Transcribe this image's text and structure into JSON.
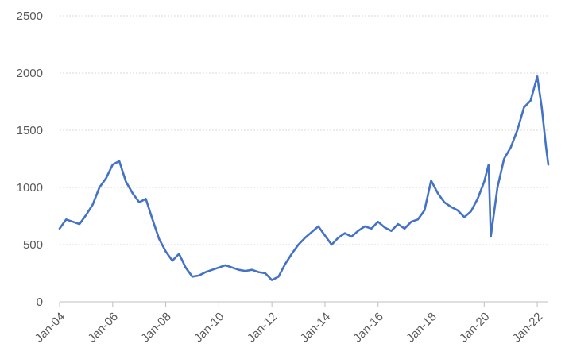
{
  "chart_data": {
    "type": "line",
    "title": "",
    "xlabel": "",
    "ylabel": "",
    "ylim": [
      0,
      2500
    ],
    "yticks": [
      0,
      500,
      1000,
      1500,
      2000,
      2500
    ],
    "xticks": [
      "Jan-04",
      "Jan-06",
      "Jan-08",
      "Jan-10",
      "Jan-12",
      "Jan-14",
      "Jan-16",
      "Jan-18",
      "Jan-20",
      "Jan-22"
    ],
    "xlim": [
      "2004-01",
      "2022-06"
    ],
    "grid": true,
    "legend": "none",
    "color": "#4472c4",
    "series": [
      {
        "x": [
          "2004-01",
          "2004-04",
          "2004-07",
          "2004-10",
          "2005-01",
          "2005-04",
          "2005-07",
          "2005-10",
          "2006-01",
          "2006-04",
          "2006-07",
          "2006-10",
          "2007-01",
          "2007-04",
          "2007-07",
          "2007-10",
          "2008-01",
          "2008-04",
          "2008-07",
          "2008-10",
          "2009-01",
          "2009-04",
          "2009-07",
          "2009-10",
          "2010-01",
          "2010-04",
          "2010-07",
          "2010-10",
          "2011-01",
          "2011-04",
          "2011-07",
          "2011-10",
          "2012-01",
          "2012-04",
          "2012-07",
          "2012-10",
          "2013-01",
          "2013-04",
          "2013-07",
          "2013-10",
          "2014-01",
          "2014-04",
          "2014-07",
          "2014-10",
          "2015-01",
          "2015-04",
          "2015-07",
          "2015-10",
          "2016-01",
          "2016-04",
          "2016-07",
          "2016-10",
          "2017-01",
          "2017-04",
          "2017-07",
          "2017-10",
          "2018-01",
          "2018-04",
          "2018-07",
          "2018-10",
          "2019-01",
          "2019-04",
          "2019-07",
          "2019-10",
          "2020-01",
          "2020-03",
          "2020-04",
          "2020-07",
          "2020-10",
          "2021-01",
          "2021-04",
          "2021-07",
          "2021-10",
          "2022-01",
          "2022-03",
          "2022-05",
          "2022-06"
        ],
        "values": [
          640,
          720,
          700,
          680,
          760,
          850,
          1000,
          1080,
          1200,
          1230,
          1050,
          950,
          870,
          900,
          720,
          550,
          440,
          360,
          420,
          300,
          220,
          230,
          260,
          280,
          300,
          320,
          300,
          280,
          270,
          280,
          260,
          250,
          190,
          220,
          330,
          420,
          500,
          560,
          610,
          660,
          580,
          500,
          560,
          600,
          570,
          620,
          660,
          640,
          700,
          650,
          620,
          680,
          640,
          700,
          720,
          800,
          1060,
          950,
          870,
          830,
          800,
          740,
          790,
          900,
          1050,
          1200,
          570,
          1000,
          1250,
          1350,
          1500,
          1700,
          1760,
          1970,
          1700,
          1350,
          1200
        ]
      }
    ]
  }
}
